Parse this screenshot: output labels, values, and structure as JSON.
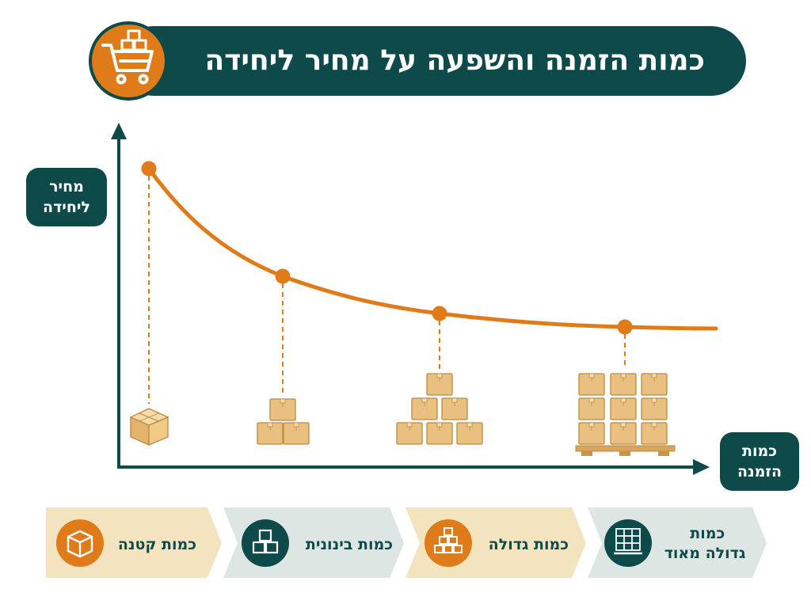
{
  "title": "כמות הזמנה והשפעה על מחיר ליחידה",
  "y_axis_label": [
    "מחיר",
    "ליחידה"
  ],
  "x_axis_label": [
    "כמות",
    "הזמנה"
  ],
  "tiers": [
    {
      "label_lines": [
        "כמות קטנה"
      ],
      "icon": "single-box-icon"
    },
    {
      "label_lines": [
        "כמות בינונית"
      ],
      "icon": "three-boxes-icon"
    },
    {
      "label_lines": [
        "כמות גדולה"
      ],
      "icon": "box-pyramid-icon"
    },
    {
      "label_lines": [
        "כמות",
        "גדולה מאוד"
      ],
      "icon": "pallet-icon"
    }
  ],
  "colors": {
    "teal": "#0e4a4a",
    "orange": "#e07b1a",
    "box": "#e9c07f",
    "box_edge": "#b88a45",
    "light_gold": "#f3e4bf",
    "light_teal": "#dde6e3"
  }
}
